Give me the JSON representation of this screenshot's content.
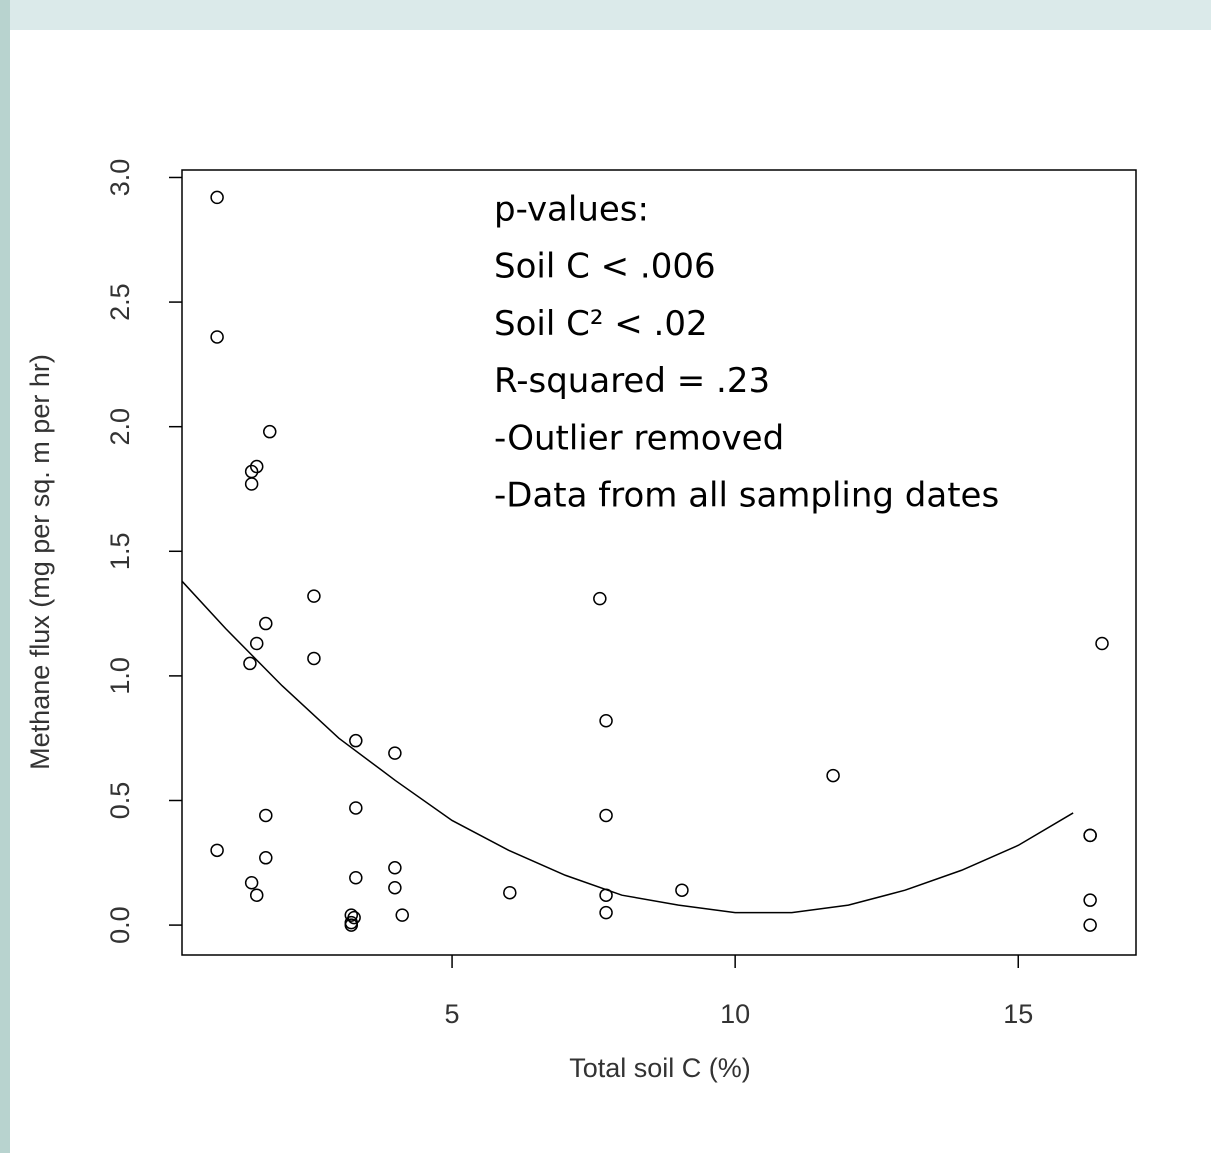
{
  "chart_data": {
    "type": "scatter",
    "xlabel": "Total soil C (%)",
    "ylabel": "Methane flux (mg per sq. m per hr)",
    "xlim": [
      0.23,
      17.08
    ],
    "ylim": [
      -0.12,
      3.03
    ],
    "xticks": [
      5,
      10,
      15
    ],
    "yticks": [
      {
        "value": 0,
        "label": "0.0"
      },
      {
        "value": 0.5,
        "label": "0.5"
      },
      {
        "value": 1,
        "label": "1.0"
      },
      {
        "value": 1.5,
        "label": "1.5"
      },
      {
        "value": 2,
        "label": "2.0"
      },
      {
        "value": 2.5,
        "label": "2.5"
      },
      {
        "value": 3,
        "label": "3.0"
      }
    ],
    "annotation": [
      "p-values:",
      "Soil C < .006",
      "Soil C² < .02",
      "R-squared = .23",
      "-Outlier removed",
      "-Data from all sampling dates"
    ],
    "series": [
      {
        "type": "scatter",
        "color": "#000000",
        "x": [
          0.85,
          0.85,
          1.78,
          1.55,
          1.46,
          1.46,
          2.56,
          1.71,
          1.55,
          1.43,
          2.56,
          3.3,
          3.99,
          3.3,
          1.71,
          0.85,
          1.71,
          1.46,
          1.55,
          3.3,
          3.99,
          3.99,
          4.12,
          3.22,
          3.27,
          3.22,
          3.22,
          6.02,
          7.61,
          7.72,
          7.72,
          7.72,
          7.72,
          9.06,
          11.73,
          16.48,
          16.27,
          16.27,
          16.27,
          16.27
        ],
        "values": [
          2.92,
          2.36,
          1.98,
          1.84,
          1.82,
          1.77,
          1.32,
          1.21,
          1.13,
          1.05,
          1.07,
          0.74,
          0.69,
          0.47,
          0.44,
          0.3,
          0.27,
          0.17,
          0.12,
          0.19,
          0.23,
          0.15,
          0.04,
          0.04,
          0.03,
          0.01,
          0.0,
          0.13,
          1.31,
          0.82,
          0.44,
          0.12,
          0.05,
          0.14,
          0.6,
          1.13,
          0.36,
          0.36,
          0.1,
          0.0
        ]
      },
      {
        "type": "line",
        "color": "#000000",
        "x": [
          0.23,
          1,
          2,
          3,
          4,
          5,
          6,
          7,
          8,
          9,
          10,
          11,
          12,
          13,
          14,
          15,
          15.97
        ],
        "values": [
          1.38,
          1.19,
          0.96,
          0.75,
          0.58,
          0.42,
          0.3,
          0.2,
          0.12,
          0.08,
          0.05,
          0.05,
          0.08,
          0.14,
          0.22,
          0.32,
          0.45
        ]
      }
    ]
  }
}
